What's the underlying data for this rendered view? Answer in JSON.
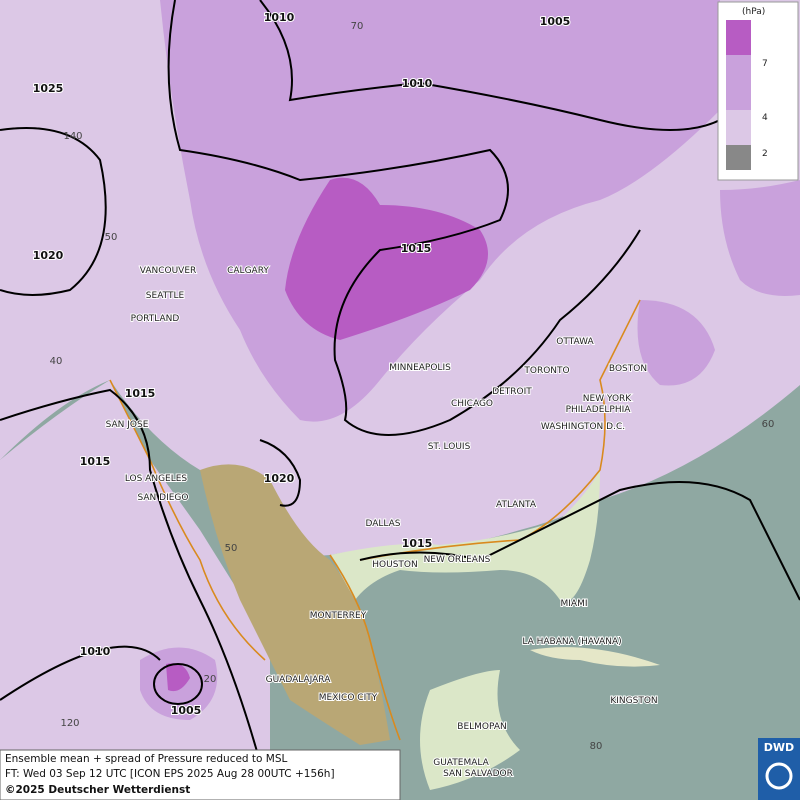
{
  "legend": {
    "unit": "(hPa)",
    "levels": [
      7,
      4,
      2
    ]
  },
  "isobar_labels": [
    1010,
    1005,
    1010,
    1025,
    1020,
    1015,
    1015,
    1015,
    1020,
    1015,
    1010,
    1005
  ],
  "grid_labels": [
    70,
    140,
    50,
    40,
    60,
    50,
    20,
    120,
    80
  ],
  "cities": [
    "VANCOUVER",
    "CALGARY",
    "SEATTLE",
    "PORTLAND",
    "MINNEAPOLIS",
    "OTTAWA",
    "TORONTO",
    "BOSTON",
    "DETROIT",
    "NEW YORK",
    "CHICAGO",
    "PHILADELPHIA",
    "SAN JOSE",
    "WASHINGTON D.C.",
    "ST. LOUIS",
    "LOS ANGELES",
    "SAN DIEGO",
    "ATLANTA",
    "DALLAS",
    "HOUSTON",
    "NEW ORLEANS",
    "MIAMI",
    "MONTERREY",
    "LA HABANA (HAVANA)",
    "GUADALAJARA",
    "MEXICO CITY",
    "KINGSTON",
    "BELMOPAN",
    "GUATEMALA",
    "SAN SALVADOR"
  ],
  "footer": {
    "line1": "Ensemble mean + spread of Pressure reduced to MSL",
    "line2": "FT: Wed 03 Sep 12 UTC [ICON EPS 2025 Aug 28 00UTC +156h]",
    "line3": "©2025 Deutscher Wetterdienst"
  },
  "logo": "DWD"
}
